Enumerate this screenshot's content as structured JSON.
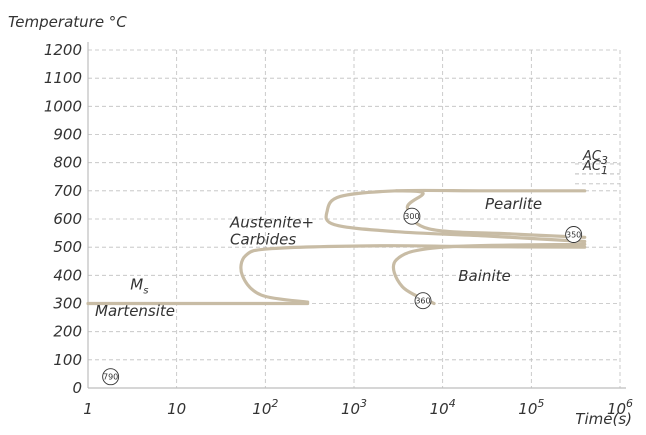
{
  "chart_data": {
    "type": "line",
    "ylabel": "Temperature °C",
    "xlabel": "Time(s)",
    "x_scale": "log",
    "xlim": [
      1,
      1000000
    ],
    "ylim": [
      0,
      1200
    ],
    "y_ticks": [
      "0",
      "100",
      "200",
      "300",
      "400",
      "500",
      "600",
      "700",
      "800",
      "900",
      "1000",
      "1100",
      "1200"
    ],
    "x_ticks": [
      {
        "base": "1",
        "exp": ""
      },
      {
        "base": "10",
        "exp": ""
      },
      {
        "base": "10",
        "exp": "2"
      },
      {
        "base": "10",
        "exp": "3"
      },
      {
        "base": "10",
        "exp": "4"
      },
      {
        "base": "10",
        "exp": "5"
      },
      {
        "base": "10",
        "exp": "6"
      }
    ],
    "grid": true,
    "curve_color": "#c8bca5",
    "series": [
      {
        "points": [
          [
            400000,
            700
          ],
          [
            30000,
            700
          ],
          [
            3000,
            700
          ],
          [
            700,
            680
          ],
          [
            500,
            630
          ],
          [
            600,
            580
          ],
          [
            3000,
            555
          ],
          [
            30000,
            540
          ],
          [
            400000,
            520
          ]
        ]
      },
      {
        "points": [
          [
            3000,
            700
          ],
          [
            6000,
            692
          ],
          [
            4000,
            640
          ],
          [
            7000,
            565
          ],
          [
            60000,
            547
          ],
          [
            400000,
            535
          ]
        ]
      },
      {
        "points": [
          [
            400000,
            500
          ],
          [
            20000,
            502
          ],
          [
            2000,
            505
          ],
          [
            120,
            495
          ],
          [
            60,
            470
          ],
          [
            55,
            400
          ],
          [
            90,
            330
          ],
          [
            300,
            305
          ]
        ]
      },
      {
        "points": [
          [
            1,
            300
          ],
          [
            300,
            300
          ]
        ]
      },
      {
        "points": [
          [
            400000,
            510
          ],
          [
            10000,
            500
          ],
          [
            3000,
            455
          ],
          [
            3500,
            360
          ],
          [
            8000,
            300
          ]
        ]
      }
    ],
    "reference_lines": [
      {
        "label_main": "AC",
        "label_sub": "3",
        "y": 760
      },
      {
        "label_main": "AC",
        "label_sub": "1",
        "y": 725
      }
    ],
    "annotations": [
      {
        "text": "Pearlite",
        "x": 30000,
        "y": 635
      },
      {
        "text": "Bainite",
        "x": 15000,
        "y": 380
      },
      {
        "text": "Austenite+",
        "x": 40,
        "y": 570
      },
      {
        "text": "Carbides",
        "x": 40,
        "y": 510
      },
      {
        "text": "Martensite",
        "x": 1.2,
        "y": 255
      },
      {
        "text_main": "M",
        "text_sub": "s",
        "x": 3,
        "y": 350
      }
    ],
    "markers": [
      {
        "text": "790",
        "x": 1.8,
        "y": 40
      },
      {
        "text": "300",
        "x": 4500,
        "y": 610
      },
      {
        "text": "350",
        "x": 300000,
        "y": 545
      },
      {
        "text": "360",
        "x": 6000,
        "y": 310
      }
    ]
  }
}
